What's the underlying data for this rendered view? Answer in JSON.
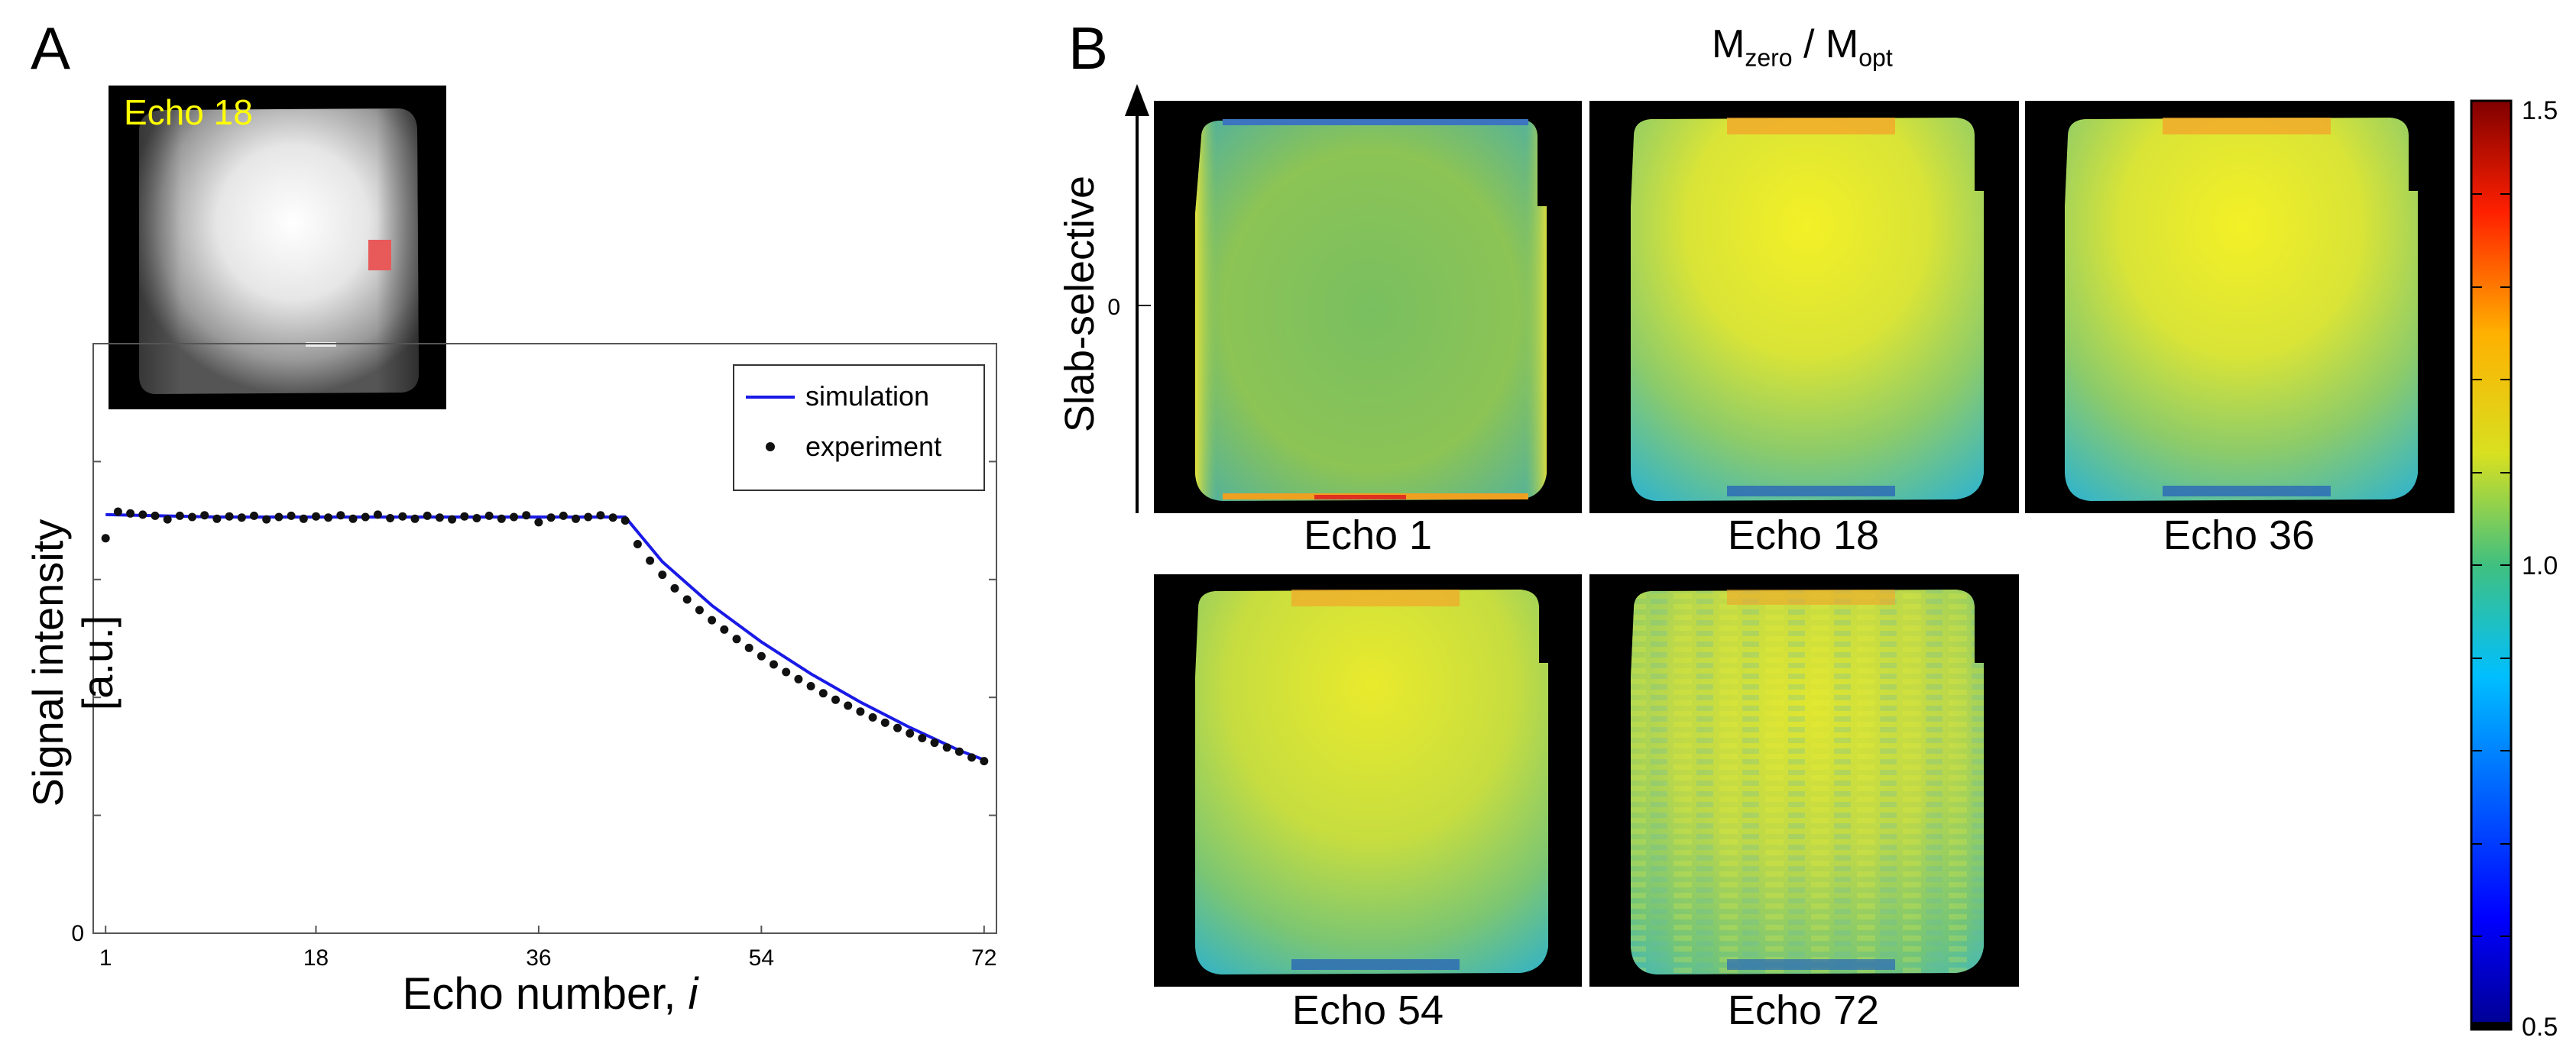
{
  "panel_a": {
    "letter": "A",
    "inset_label": "Echo 18",
    "x_axis_label_main": "Echo number, ",
    "x_axis_label_var": "i",
    "y_axis_label": "Signal intensity [a.u.]",
    "x_ticks": [
      "1",
      "18",
      "36",
      "54",
      "72"
    ],
    "y_zero": "0",
    "legend": {
      "simulation": "simulation",
      "experiment": "experiment"
    }
  },
  "panel_b": {
    "letter": "B",
    "title_m1": "M",
    "title_sub1": "zero",
    "title_sep": " / M",
    "title_sub2": "opt",
    "y_axis_label": "Slab-selective",
    "y_tick": "0",
    "maps": [
      {
        "label": "Echo 1"
      },
      {
        "label": "Echo 18"
      },
      {
        "label": "Echo 36"
      },
      {
        "label": "Echo 54"
      },
      {
        "label": "Echo 72"
      }
    ],
    "colorbar": {
      "max": "1.5",
      "mid": "1.0",
      "min": "0.5"
    }
  },
  "colors": {
    "simulation_line": "#1a1ae6",
    "experiment_dots": "#111111",
    "inset_label": "#ffff00",
    "roi": "#e85a5a"
  },
  "chart_data": {
    "type": "line",
    "title": "",
    "xlabel": "Echo number, i",
    "ylabel": "Signal intensity [a.u.]",
    "xlim": [
      0,
      73
    ],
    "ylim": [
      0,
      1.0
    ],
    "x_ticks": [
      1,
      18,
      36,
      54,
      72
    ],
    "legend_position": "top-right",
    "series": [
      {
        "name": "simulation",
        "style": "line",
        "x": [
          1,
          10,
          20,
          30,
          40,
          43,
          46,
          50,
          54,
          58,
          62,
          66,
          70,
          72
        ],
        "y": [
          0.71,
          0.706,
          0.706,
          0.706,
          0.706,
          0.706,
          0.63,
          0.556,
          0.494,
          0.44,
          0.392,
          0.349,
          0.31,
          0.294
        ]
      },
      {
        "name": "experiment",
        "style": "scatter",
        "x": [
          1,
          2,
          3,
          4,
          5,
          6,
          7,
          8,
          9,
          10,
          11,
          12,
          13,
          14,
          15,
          16,
          17,
          18,
          19,
          20,
          21,
          22,
          23,
          24,
          25,
          26,
          27,
          28,
          29,
          30,
          31,
          32,
          33,
          34,
          35,
          36,
          37,
          38,
          39,
          40,
          41,
          42,
          43,
          44,
          45,
          46,
          47,
          48,
          49,
          50,
          51,
          52,
          53,
          54,
          55,
          56,
          57,
          58,
          59,
          60,
          61,
          62,
          63,
          64,
          65,
          66,
          67,
          68,
          69,
          70,
          71,
          72
        ],
        "y": [
          0.67,
          0.715,
          0.712,
          0.71,
          0.708,
          0.702,
          0.708,
          0.706,
          0.709,
          0.703,
          0.707,
          0.705,
          0.708,
          0.702,
          0.706,
          0.708,
          0.703,
          0.707,
          0.705,
          0.709,
          0.703,
          0.706,
          0.71,
          0.704,
          0.707,
          0.703,
          0.708,
          0.705,
          0.702,
          0.707,
          0.704,
          0.708,
          0.703,
          0.706,
          0.709,
          0.697,
          0.705,
          0.708,
          0.703,
          0.706,
          0.709,
          0.705,
          0.7,
          0.66,
          0.632,
          0.608,
          0.585,
          0.566,
          0.548,
          0.531,
          0.515,
          0.499,
          0.484,
          0.47,
          0.456,
          0.443,
          0.431,
          0.419,
          0.407,
          0.396,
          0.386,
          0.376,
          0.366,
          0.357,
          0.348,
          0.339,
          0.331,
          0.323,
          0.315,
          0.308,
          0.298,
          0.292
        ]
      }
    ]
  }
}
